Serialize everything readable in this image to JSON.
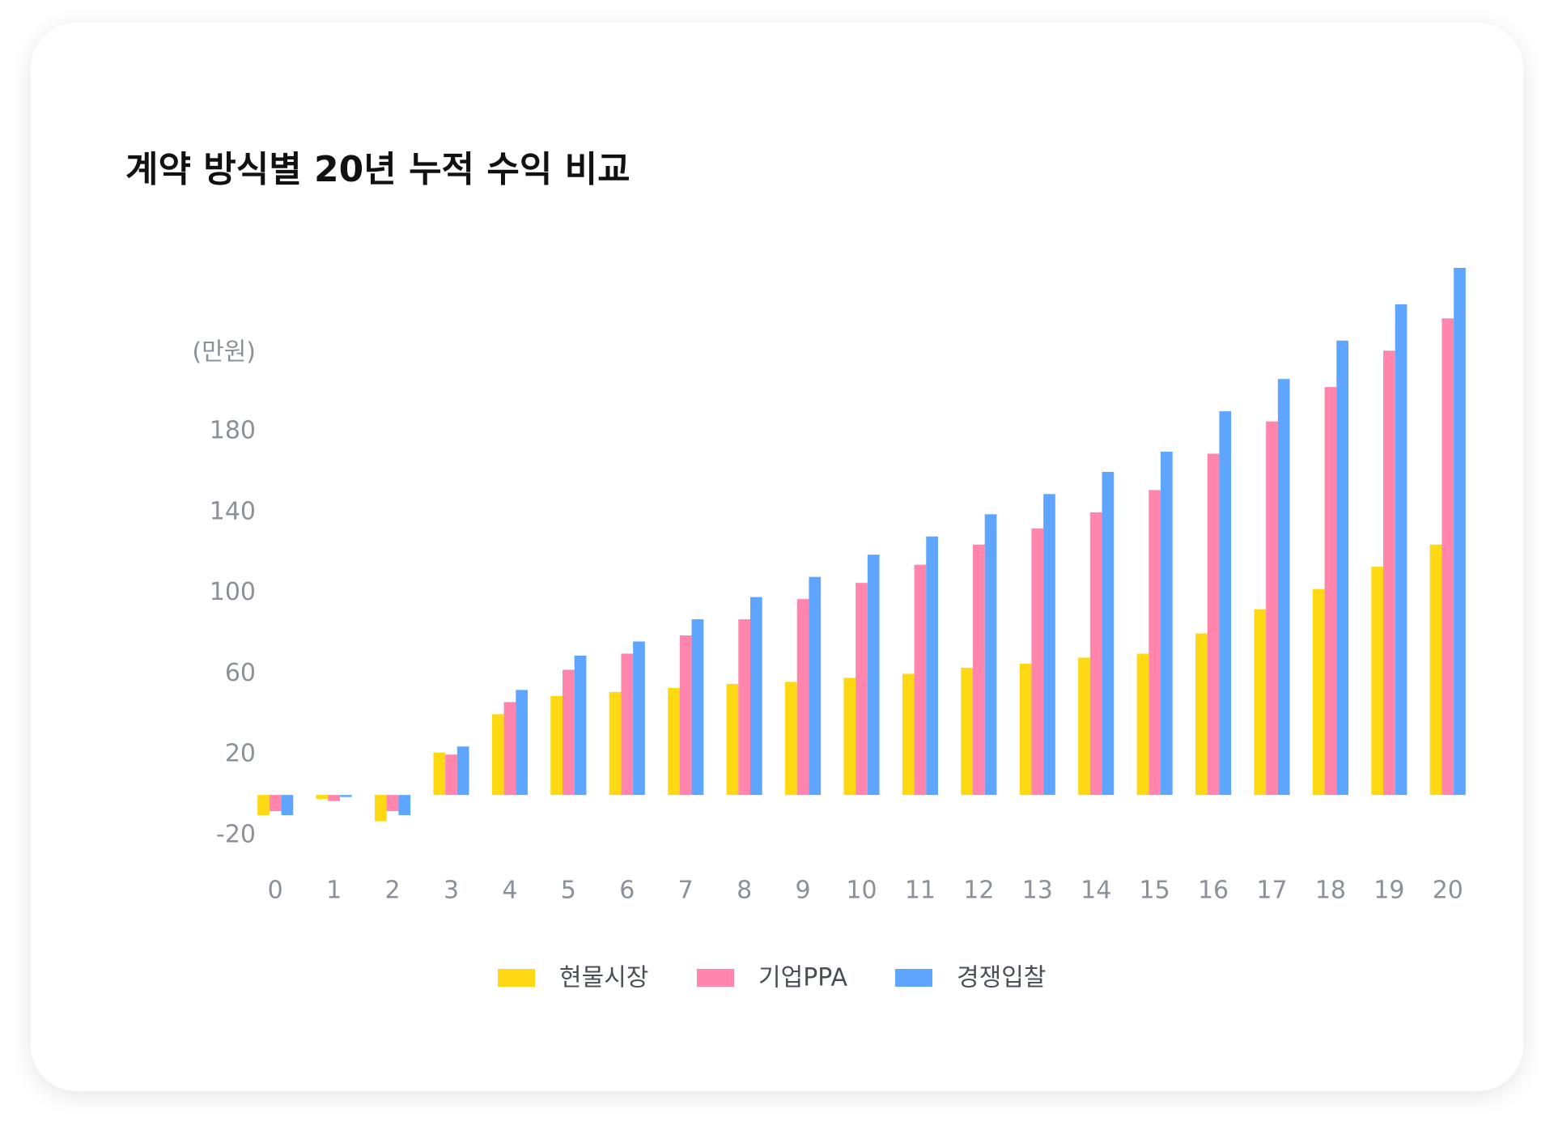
{
  "chart_data": {
    "type": "bar",
    "title": "계약 방식별 20년 누적 수익 비교",
    "y_axis_label": "(만원)",
    "categories": [
      0,
      1,
      2,
      3,
      4,
      5,
      6,
      7,
      8,
      9,
      10,
      11,
      12,
      13,
      14,
      15,
      16,
      17,
      18,
      19,
      20
    ],
    "series": [
      {
        "name": "현물시장",
        "color": "#FFD814",
        "values": [
          -10,
          -2,
          -13,
          21,
          40,
          49,
          51,
          53,
          55,
          56,
          58,
          60,
          63,
          65,
          68,
          70,
          80,
          92,
          102,
          113,
          124
        ]
      },
      {
        "name": "기업PPA",
        "color": "#FF85AC",
        "values": [
          -8,
          -3,
          -8,
          20,
          46,
          62,
          70,
          79,
          87,
          97,
          105,
          114,
          124,
          132,
          140,
          151,
          169,
          185,
          202,
          220,
          236
        ]
      },
      {
        "name": "경쟁입찰",
        "color": "#5EA5FF",
        "values": [
          -10,
          -1,
          -10,
          24,
          52,
          69,
          76,
          87,
          98,
          108,
          119,
          128,
          139,
          149,
          160,
          170,
          190,
          206,
          225,
          243,
          261
        ]
      }
    ],
    "ylim": [
      -20,
      265
    ],
    "yticks": [
      -20,
      20,
      60,
      100,
      140,
      180
    ],
    "grid": false,
    "legend": "bottom"
  }
}
